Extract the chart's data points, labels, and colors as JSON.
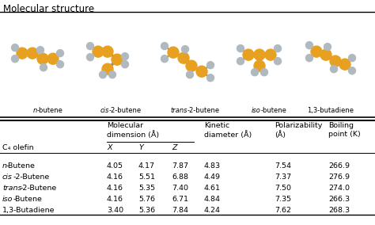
{
  "title": "Molecular structure",
  "rows": [
    [
      "n-Butene",
      4.05,
      4.17,
      7.87,
      4.83,
      7.54,
      266.9
    ],
    [
      "cis-2-Butene",
      4.16,
      5.51,
      6.88,
      4.49,
      7.37,
      276.9
    ],
    [
      "trans-2-Butene",
      4.16,
      5.35,
      7.4,
      4.61,
      7.5,
      274.0
    ],
    [
      "iso-Butene",
      4.16,
      5.76,
      6.71,
      4.84,
      7.35,
      266.3
    ],
    [
      "1,3-Butadiene",
      3.4,
      5.36,
      7.84,
      4.24,
      7.62,
      268.3
    ]
  ],
  "italic_prefixes": [
    "n",
    "cis",
    "trans",
    "iso",
    ""
  ],
  "name_suffixes": [
    "-Butene",
    "-2-Butene",
    "-2-Butene",
    "-Butene",
    "1,3-Butadiene"
  ],
  "background_color": "#ffffff",
  "orange": "#E8A020",
  "gray": "#B0B8C0",
  "bond_color": "#888888",
  "mol_label_names": [
    "n-butene",
    "cis-2-butene",
    "trans-2-butene",
    "iso-butene",
    "1,3-butadiene"
  ],
  "mol_label_italic": [
    "n",
    "cis",
    "trans",
    "iso",
    ""
  ],
  "mol_label_plain": [
    "-butene",
    "-2-butene",
    "-2-butene",
    "-butene",
    "1,3-butadiene"
  ]
}
